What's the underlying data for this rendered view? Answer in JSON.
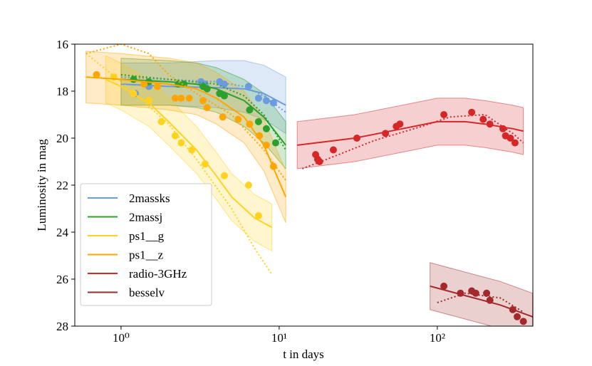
{
  "chart_data": {
    "type": "scatter",
    "xlabel": "t in days",
    "ylabel": "Luminosity in mag",
    "xscale": "log",
    "xlim": [
      0.51,
      402
    ],
    "xticks": [
      {
        "value": 1,
        "label": "10⁰"
      },
      {
        "value": 10,
        "label": "10¹"
      },
      {
        "value": 100,
        "label": "10²"
      }
    ],
    "ylim": [
      16,
      28
    ],
    "yinverted": true,
    "yticks": [
      16,
      18,
      20,
      22,
      24,
      26,
      28
    ],
    "legend": "lower left",
    "series": [
      {
        "name": "2massks",
        "color": "#6a9be0",
        "x": [
          1.23,
          1.5,
          2.3,
          2.5,
          3.2,
          3.4,
          4.2,
          4.5,
          6.4,
          7.4,
          8.3,
          9.2
        ],
        "y": [
          18.1,
          17.8,
          17.7,
          17.7,
          17.6,
          17.7,
          17.6,
          17.7,
          17.8,
          18.3,
          18.4,
          18.5
        ],
        "model_x": [
          1,
          2,
          4,
          6,
          8,
          11
        ],
        "model_y": [
          17.7,
          17.8,
          17.85,
          17.9,
          18.1,
          18.6
        ],
        "model_lo": [
          16.8,
          16.8,
          16.7,
          16.7,
          16.9,
          17.4
        ],
        "model_hi": [
          18.6,
          18.6,
          18.7,
          18.9,
          19.2,
          19.8
        ],
        "dotted_x": [
          1,
          2,
          4,
          6,
          8,
          11
        ],
        "dotted_y": [
          17.4,
          17.5,
          17.6,
          17.8,
          18.2,
          18.9
        ]
      },
      {
        "name": "2massj",
        "color": "#2ca02c",
        "x": [
          1.2,
          1.5,
          2.3,
          2.5,
          3.3,
          3.5,
          4.2,
          4.5,
          6.5,
          7.4,
          8.3,
          9.5
        ],
        "y": [
          17.5,
          17.6,
          17.7,
          17.7,
          17.8,
          17.9,
          18.1,
          18.2,
          18.8,
          19.3,
          19.6,
          20.2
        ],
        "model_x": [
          1,
          2,
          3,
          4,
          6,
          8,
          11
        ],
        "model_y": [
          17.5,
          17.6,
          17.7,
          17.9,
          18.4,
          19.1,
          20.3
        ],
        "model_lo": [
          16.6,
          16.7,
          16.8,
          17.0,
          17.5,
          18.1,
          19.3
        ],
        "model_hi": [
          18.6,
          18.6,
          18.7,
          18.9,
          19.5,
          20.2,
          21.3
        ],
        "dotted_x": [
          1,
          2,
          4,
          6,
          8,
          11
        ],
        "dotted_y": [
          17.3,
          17.5,
          17.7,
          18.2,
          19.0,
          20.5
        ]
      },
      {
        "name": "ps1__g",
        "color": "#ffd21f",
        "x": [
          0.9,
          1.2,
          1.5,
          1.8,
          2.2,
          2.4,
          2.8,
          3.4,
          4.5,
          6.4,
          7.4
        ],
        "y": [
          17.4,
          18.1,
          18.4,
          19.3,
          19.9,
          20.2,
          20.5,
          21.1,
          21.6,
          22.0,
          23.3
        ],
        "model_x": [
          0.8,
          1,
          1.5,
          2,
          3,
          4,
          5,
          7,
          9
        ],
        "model_y": [
          17.5,
          17.8,
          18.5,
          19.3,
          20.5,
          21.6,
          22.5,
          23.4,
          23.8
        ],
        "model_lo": [
          16.5,
          16.8,
          17.5,
          18.3,
          19.5,
          20.6,
          21.5,
          22.4,
          22.8
        ],
        "model_hi": [
          18.5,
          18.8,
          19.5,
          20.3,
          21.5,
          22.6,
          23.5,
          24.4,
          24.8
        ],
        "dotted_x": [
          0.6,
          1,
          2,
          3,
          5,
          7,
          9
        ],
        "dotted_y": [
          16.4,
          17.6,
          19.4,
          20.9,
          23.0,
          24.7,
          25.8
        ]
      },
      {
        "name": "ps1__z",
        "color": "#ffa500",
        "x": [
          0.7,
          1.4,
          1.7,
          2.2,
          2.4,
          2.7,
          3.3,
          3.5,
          4.4,
          5.5,
          6.5,
          7.5,
          8.3,
          9.2
        ],
        "y": [
          17.3,
          17.7,
          17.8,
          18.3,
          18.3,
          18.3,
          18.4,
          18.7,
          19.1,
          19.2,
          19.4,
          19.9,
          20.3,
          21.2
        ],
        "model_x": [
          0.6,
          1,
          2,
          3,
          4,
          6,
          8,
          11
        ],
        "model_y": [
          17.4,
          17.5,
          17.7,
          17.9,
          18.3,
          19.1,
          20.3,
          22.5
        ],
        "model_lo": [
          16.3,
          16.4,
          16.6,
          16.8,
          17.2,
          18.0,
          19.2,
          21.4
        ],
        "model_hi": [
          18.5,
          18.6,
          18.8,
          19.0,
          19.4,
          20.2,
          21.4,
          23.6
        ],
        "dotted_x": [
          0.6,
          1,
          1.5,
          2,
          3,
          5,
          8,
          11
        ],
        "dotted_y": [
          16.4,
          16.0,
          16.4,
          17.3,
          18.1,
          19.0,
          20.5,
          21.8
        ]
      },
      {
        "name": "radio-3GHz",
        "color": "#d62728",
        "x": [
          17,
          17.5,
          18,
          22,
          31,
          47,
          55,
          58,
          110,
          165,
          195,
          215,
          260,
          270,
          290,
          310
        ],
        "y": [
          20.7,
          20.9,
          21.0,
          20.5,
          20.0,
          19.8,
          19.5,
          19.4,
          19.0,
          18.9,
          19.2,
          19.4,
          19.6,
          19.9,
          20.0,
          20.2
        ],
        "model_x": [
          13,
          30,
          60,
          100,
          150,
          200,
          300,
          350
        ],
        "model_y": [
          20.3,
          20.0,
          19.6,
          19.3,
          19.3,
          19.4,
          19.6,
          19.7
        ],
        "model_lo": [
          19.3,
          19.0,
          18.6,
          18.3,
          18.3,
          18.4,
          18.6,
          18.7
        ],
        "model_hi": [
          21.3,
          21.0,
          20.6,
          20.3,
          20.3,
          20.4,
          20.6,
          20.7
        ],
        "dotted_x": [
          14,
          20,
          40,
          80,
          120,
          200,
          300,
          350
        ],
        "dotted_y": [
          21.3,
          20.9,
          20.1,
          19.5,
          19.1,
          19.0,
          19.8,
          20.2
        ]
      },
      {
        "name": "besselv",
        "color": "#a3292b",
        "x": [
          110,
          140,
          165,
          175,
          205,
          215,
          300,
          320,
          350
        ],
        "y": [
          26.3,
          26.6,
          26.5,
          26.6,
          26.6,
          26.9,
          27.3,
          27.6,
          27.8
        ],
        "model_x": [
          90,
          150,
          250,
          400
        ],
        "model_y": [
          26.3,
          26.7,
          27.1,
          27.6
        ],
        "model_lo": [
          25.3,
          25.7,
          26.1,
          26.6
        ],
        "model_hi": [
          27.3,
          27.7,
          28.1,
          28.6
        ],
        "dotted_x": [
          100,
          150,
          250,
          350
        ],
        "dotted_y": [
          27.0,
          26.6,
          26.8,
          27.4
        ]
      }
    ]
  }
}
